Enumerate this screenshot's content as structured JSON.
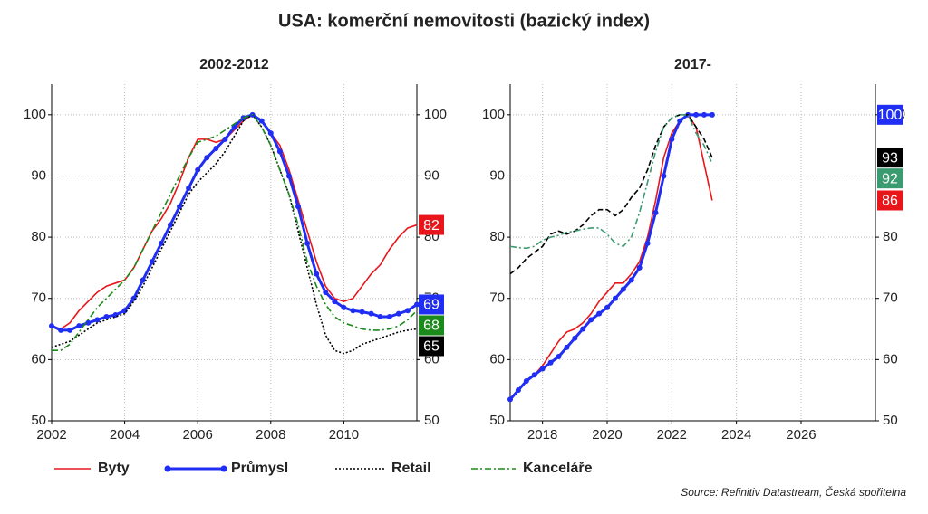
{
  "title": "USA: komerční nemovitosti (bazický index)",
  "source": "Source: Refinitiv Datastream, Česká spořitelna",
  "chart_data": [
    {
      "type": "line",
      "title": "2002-2012",
      "x": [
        2002,
        2002.25,
        2002.5,
        2002.75,
        2003,
        2003.25,
        2003.5,
        2003.75,
        2004,
        2004.25,
        2004.5,
        2004.75,
        2005,
        2005.25,
        2005.5,
        2005.75,
        2006,
        2006.25,
        2006.5,
        2006.75,
        2007,
        2007.25,
        2007.5,
        2007.75,
        2008,
        2008.25,
        2008.5,
        2008.75,
        2009,
        2009.25,
        2009.5,
        2009.75,
        2010,
        2010.25,
        2010.5,
        2010.75,
        2011,
        2011.25,
        2011.5,
        2011.75,
        2012
      ],
      "series": [
        {
          "name": "Byty",
          "color": "#e8161a",
          "line_style": "solid",
          "marker": false,
          "values": [
            65.5,
            65,
            66,
            68,
            69.5,
            71,
            72,
            72.5,
            73,
            75,
            78,
            81,
            83,
            85.5,
            89,
            93,
            96,
            96,
            95.5,
            96,
            97.5,
            99,
            100,
            99,
            97,
            95,
            91,
            86,
            81,
            76,
            72,
            70,
            69.5,
            70,
            72,
            74,
            75.5,
            78,
            80,
            81.5,
            82
          ]
        },
        {
          "name": "Průmysl",
          "color": "#1f2ef2",
          "line_style": "solid",
          "marker": true,
          "values": [
            65.5,
            64.8,
            64.8,
            65.5,
            66,
            66.5,
            67,
            67.3,
            68,
            70,
            73,
            76,
            79,
            82,
            85,
            88,
            91,
            93,
            94.5,
            96,
            98,
            99.5,
            100,
            99,
            97,
            94,
            90,
            85,
            79,
            74,
            71,
            69.5,
            68.5,
            68,
            67.8,
            67.5,
            67,
            67,
            67.5,
            68,
            69
          ]
        },
        {
          "name": "Retail",
          "color": "#000000",
          "line_style": "dotted",
          "marker": false,
          "values": [
            62,
            62.5,
            63,
            64,
            65,
            66,
            66.5,
            67,
            67.5,
            69.5,
            72,
            75,
            78,
            81,
            84,
            87,
            89,
            90.5,
            92,
            94,
            96.5,
            99,
            100,
            98,
            95,
            91,
            87,
            81,
            75,
            69,
            64,
            61.5,
            61,
            61.5,
            62.5,
            63,
            63.5,
            64,
            64.5,
            64.8,
            65
          ]
        },
        {
          "name": "Kanceláře",
          "color": "#1a8a1a",
          "line_style": "dashdot",
          "marker": false,
          "values": [
            61.5,
            61.5,
            62.5,
            64.5,
            66.5,
            68.5,
            70,
            71.5,
            73,
            75,
            78,
            81,
            84,
            87,
            90,
            93,
            95.5,
            96,
            96.5,
            97.5,
            98.5,
            99.5,
            100,
            98,
            95,
            91,
            87,
            82,
            76,
            72,
            69,
            67,
            66,
            65.5,
            65,
            64.8,
            64.8,
            65,
            65.5,
            66.5,
            68
          ]
        }
      ],
      "xlim": [
        2002,
        2012
      ],
      "xticks": [
        2002,
        2004,
        2006,
        2008,
        2010
      ],
      "ylim": [
        50,
        105
      ],
      "yticks": [
        50,
        60,
        70,
        80,
        90,
        100
      ],
      "y2lim": [
        50,
        105
      ],
      "y2ticks": [
        50,
        60,
        70,
        80,
        90,
        100
      ],
      "grid": true
    },
    {
      "type": "line",
      "title": "2017-",
      "x": [
        2017,
        2017.25,
        2017.5,
        2017.75,
        2018,
        2018.25,
        2018.5,
        2018.75,
        2019,
        2019.25,
        2019.5,
        2019.75,
        2020,
        2020.25,
        2020.5,
        2020.75,
        2021,
        2021.25,
        2021.5,
        2021.75,
        2022,
        2022.25,
        2022.5,
        2022.75,
        2023,
        2023.25
      ],
      "series": [
        {
          "name": "Byty",
          "color": "#e8161a",
          "line_style": "solid",
          "marker": false,
          "values": [
            53.5,
            55,
            56.5,
            57.5,
            59,
            61,
            63,
            64.5,
            65,
            66,
            67.5,
            69.5,
            71,
            72.5,
            72.5,
            74,
            76,
            80,
            86,
            93,
            97,
            99,
            100,
            98,
            92,
            86
          ]
        },
        {
          "name": "Průmysl",
          "color": "#1f2ef2",
          "line_style": "solid",
          "marker": true,
          "values": [
            53.5,
            55,
            56.5,
            57.5,
            58.5,
            59.5,
            60.5,
            62,
            63.5,
            65,
            66.5,
            67.5,
            68.5,
            70,
            71.5,
            73,
            75,
            79,
            84,
            90,
            96,
            99,
            100,
            100,
            100,
            100
          ]
        },
        {
          "name": "Retail",
          "color": "#000000",
          "line_style": "dashed",
          "marker": false,
          "values": [
            74,
            75,
            76.5,
            77.5,
            78.5,
            80.5,
            81,
            80.5,
            81,
            82,
            83.5,
            84.5,
            84.5,
            83.5,
            84.5,
            86.5,
            88,
            91,
            95,
            98,
            99.5,
            100,
            100,
            98,
            96,
            93
          ]
        },
        {
          "name": "Kanceláře",
          "color": "#3a9a70",
          "line_style": "dashdot",
          "marker": false,
          "values": [
            78.5,
            78.3,
            78.2,
            78.5,
            79.5,
            80,
            80.3,
            80.8,
            81,
            81.3,
            81.5,
            81.5,
            80.5,
            79,
            78.5,
            80,
            84,
            89,
            94,
            98,
            99.5,
            100,
            100,
            97,
            95,
            92
          ]
        }
      ],
      "xlim": [
        2017,
        2028.3
      ],
      "xticks": [
        2018,
        2020,
        2022,
        2024,
        2026
      ],
      "ylim": [
        50,
        105
      ],
      "yticks": [
        50,
        60,
        70,
        80,
        90,
        100
      ],
      "y2lim": [
        50,
        105
      ],
      "y2ticks": [
        50,
        60,
        70,
        80,
        90,
        100
      ],
      "grid": true
    }
  ]
}
